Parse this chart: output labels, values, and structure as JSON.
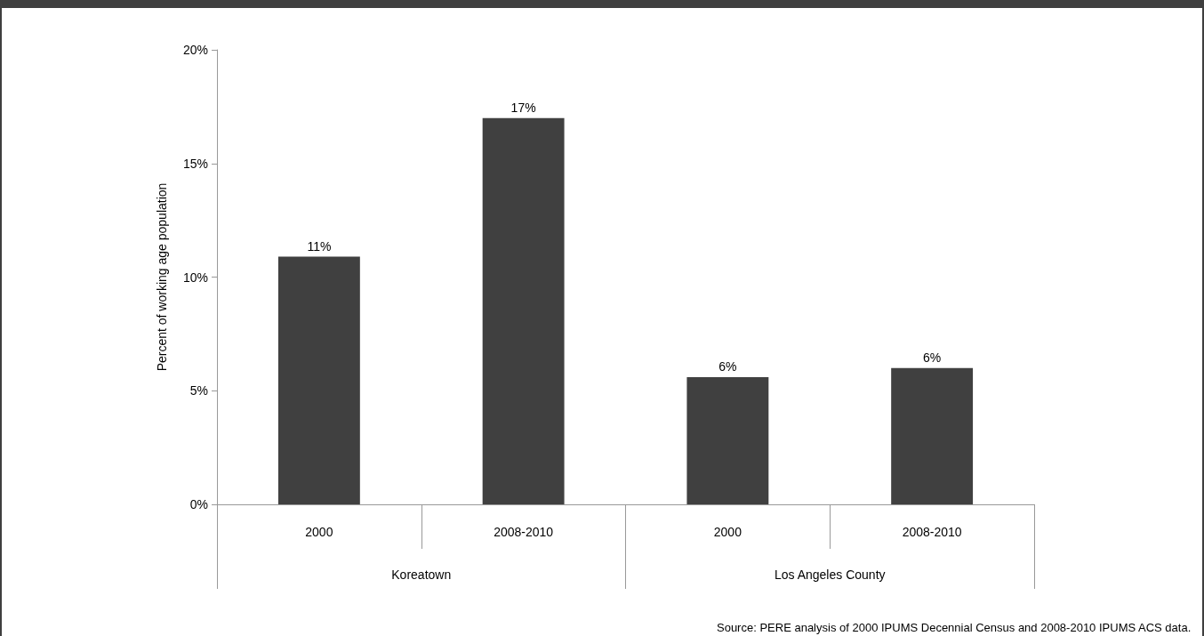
{
  "chart_data": {
    "type": "bar",
    "ylabel": "Percent of working age population",
    "categories": [
      "2000",
      "2008-2010",
      "2000",
      "2008-2010"
    ],
    "values": [
      10.9,
      17,
      5.6,
      6
    ],
    "value_labels": [
      "11%",
      "17%",
      "6%",
      "6%"
    ],
    "color": "#404040",
    "ylim": [
      0,
      20
    ],
    "yticks": [
      {
        "value": 0,
        "label": "0%"
      },
      {
        "value": 5,
        "label": "5%"
      },
      {
        "value": 10,
        "label": "10%"
      },
      {
        "value": 15,
        "label": "15%"
      },
      {
        "value": 20,
        "label": "20%"
      }
    ],
    "grid": false,
    "annotations": [
      "Koreatown",
      "Los Angeles County",
      "Source: PERE analysis of 2000 IPUMS Decennial Census and 2008-2010 IPUMS ACS data."
    ]
  }
}
